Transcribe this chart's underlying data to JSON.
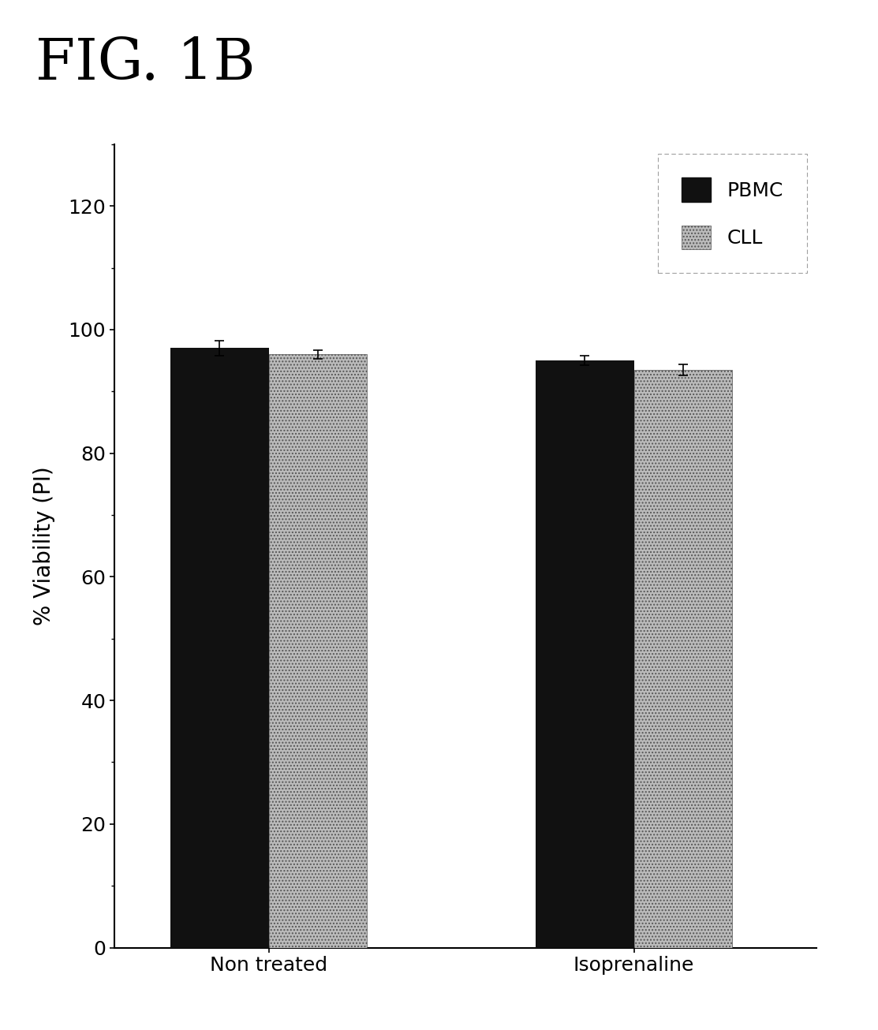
{
  "title": "FIG. 1B",
  "categories": [
    "Non treated",
    "Isoprenaline"
  ],
  "pbmc_values": [
    97.0,
    95.0
  ],
  "cll_values": [
    96.0,
    93.5
  ],
  "pbmc_errors": [
    1.2,
    0.8
  ],
  "cll_errors": [
    0.7,
    0.9
  ],
  "pbmc_color": "#111111",
  "cll_color": "#aaaaaa",
  "ylabel": "% Viability (PI)",
  "ylim": [
    0,
    130
  ],
  "yticks": [
    0,
    20,
    40,
    60,
    80,
    100,
    120
  ],
  "bar_width": 0.35,
  "legend_labels": [
    "PBMC",
    "CLL"
  ],
  "background_color": "#ffffff",
  "title_fontsize": 52,
  "axis_fontsize": 20,
  "tick_fontsize": 18,
  "legend_fontsize": 18
}
